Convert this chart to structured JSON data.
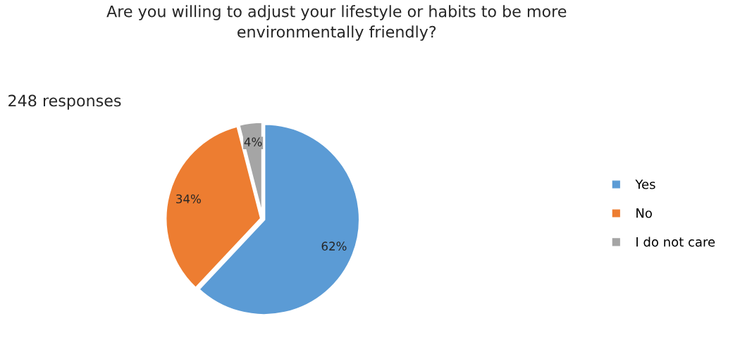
{
  "chart_data": {
    "type": "pie",
    "title": "Are you willing to adjust your lifestyle or habits to be more\nenvironmentally friendly?",
    "annotations": [
      "248 responses"
    ],
    "categories": [
      "Yes",
      "No",
      "I do not care"
    ],
    "values": [
      62,
      34,
      4
    ],
    "value_labels": [
      "62%",
      "34%",
      "4%"
    ],
    "colors": [
      "#5b9bd5",
      "#ed7d31",
      "#a5a5a5"
    ],
    "legend": "right"
  }
}
